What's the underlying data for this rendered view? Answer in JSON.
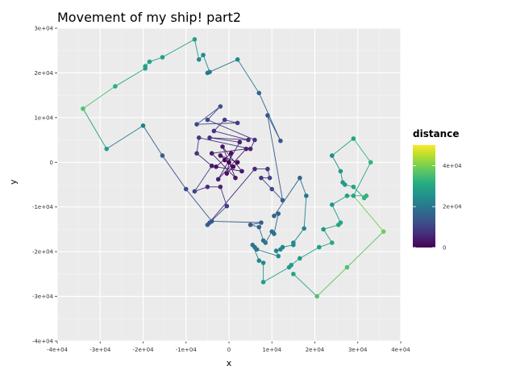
{
  "chart_data": {
    "type": "scatter",
    "title": "Movement of my ship! part2",
    "xlabel": "x",
    "ylabel": "y",
    "xlim": [
      -40000,
      40000
    ],
    "ylim": [
      -40000,
      30000
    ],
    "xticks": [
      "-4e+04",
      "-3e+04",
      "-2e+04",
      "-1e+04",
      "0",
      "1e+04",
      "2e+04",
      "3e+04",
      "4e+04"
    ],
    "yticks": [
      "3e+04",
      "2e+04",
      "1e+04",
      "0",
      "-1e+04",
      "-2e+04",
      "-3e+04",
      "-4e+04"
    ],
    "grid": true,
    "connected": true,
    "colormap": "viridis",
    "legend": {
      "title": "distance",
      "position": "right",
      "ticks": [
        "4e+04",
        "2e+04",
        "0"
      ],
      "range": [
        0,
        50000
      ]
    },
    "colors": {
      "panel": "#ebebeb",
      "grid_major": "#ffffff",
      "grid_minor": "#f4f4f4"
    },
    "points": [
      [
        0,
        0
      ],
      [
        -1000,
        500
      ],
      [
        1000,
        -1000
      ],
      [
        -2000,
        1500
      ],
      [
        2000,
        0
      ],
      [
        -500,
        -2500
      ],
      [
        500,
        2000
      ],
      [
        -3000,
        -1000
      ],
      [
        3000,
        -2000
      ],
      [
        -1500,
        3500
      ],
      [
        1500,
        -3500
      ],
      [
        -4000,
        2000
      ],
      [
        4000,
        3000
      ],
      [
        -2500,
        -3800
      ],
      [
        2500,
        4500
      ],
      [
        -4500,
        5500
      ],
      [
        4500,
        5000
      ],
      [
        -3500,
        7000
      ],
      [
        -1000,
        9500
      ],
      [
        2000,
        8800
      ],
      [
        -7500,
        8500
      ],
      [
        -2000,
        12500
      ],
      [
        -5000,
        9500
      ],
      [
        6000,
        5000
      ],
      [
        5000,
        3000
      ],
      [
        -7000,
        5500
      ],
      [
        -7500,
        2000
      ],
      [
        -4000,
        -800
      ],
      [
        -8000,
        -6500
      ],
      [
        -5000,
        -5500
      ],
      [
        -2000,
        -5500
      ],
      [
        -500,
        -9800
      ],
      [
        -4500,
        -13500
      ],
      [
        -5000,
        -14000
      ],
      [
        6000,
        -1500
      ],
      [
        9000,
        -1500
      ],
      [
        9500,
        -3500
      ],
      [
        7500,
        -3500
      ],
      [
        10000,
        -6000
      ],
      [
        12500,
        -8500
      ],
      [
        9000,
        10500
      ],
      [
        12000,
        4800
      ],
      [
        7000,
        15500
      ],
      [
        2000,
        23000
      ],
      [
        -5000,
        20000
      ],
      [
        -4500,
        20200
      ],
      [
        -6000,
        24000
      ],
      [
        -7000,
        23000
      ],
      [
        -8000,
        27500
      ],
      [
        -15500,
        23500
      ],
      [
        -18500,
        22500
      ],
      [
        -19500,
        21500
      ],
      [
        -19500,
        21000
      ],
      [
        -26500,
        17000
      ],
      [
        -34000,
        12000
      ],
      [
        -28500,
        3000
      ],
      [
        -20000,
        8200
      ],
      [
        -15500,
        1500
      ],
      [
        -10000,
        -6000
      ],
      [
        -4000,
        -13200
      ],
      [
        7500,
        -13500
      ],
      [
        5000,
        -14000
      ],
      [
        7000,
        -14500
      ],
      [
        8000,
        -17500
      ],
      [
        8500,
        -18000
      ],
      [
        10000,
        -15500
      ],
      [
        10500,
        -16000
      ],
      [
        11500,
        -11500
      ],
      [
        10500,
        -12000
      ],
      [
        16500,
        -3500
      ],
      [
        18000,
        -7500
      ],
      [
        17500,
        -14800
      ],
      [
        15000,
        -18000
      ],
      [
        15000,
        -18500
      ],
      [
        12500,
        -19000
      ],
      [
        12000,
        -19500
      ],
      [
        11000,
        -19800
      ],
      [
        11500,
        -21000
      ],
      [
        6500,
        -19500
      ],
      [
        6000,
        -19000
      ],
      [
        5500,
        -18500
      ],
      [
        7000,
        -22000
      ],
      [
        8000,
        -22500
      ],
      [
        8000,
        -26800
      ],
      [
        14000,
        -23500
      ],
      [
        14500,
        -23000
      ],
      [
        16500,
        -21500
      ],
      [
        21000,
        -19000
      ],
      [
        24000,
        -18000
      ],
      [
        22000,
        -15000
      ],
      [
        25500,
        -14000
      ],
      [
        26000,
        -13500
      ],
      [
        24000,
        -9500
      ],
      [
        27500,
        -7500
      ],
      [
        32000,
        -7500
      ],
      [
        31500,
        -8000
      ],
      [
        29000,
        -5500
      ],
      [
        27000,
        -5000
      ],
      [
        26500,
        -4500
      ],
      [
        26000,
        -2000
      ],
      [
        24000,
        1500
      ],
      [
        29000,
        5300
      ],
      [
        33000,
        0
      ],
      [
        29000,
        -7500
      ],
      [
        36000,
        -15500
      ],
      [
        27500,
        -23500
      ],
      [
        20500,
        -30000
      ],
      [
        15000,
        -25000
      ]
    ]
  }
}
